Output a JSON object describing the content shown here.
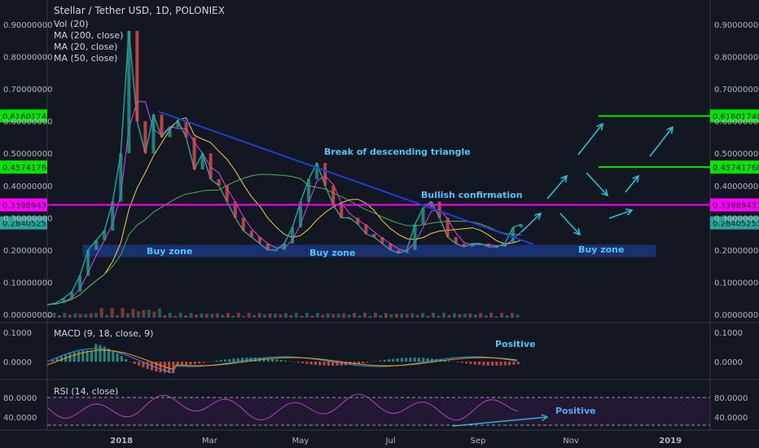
{
  "chart_data": {
    "type": "line",
    "title": "Stellar / Tether USD, 1D, POLONIEX",
    "legend": [
      "Vol (20)",
      "MA (200, close)",
      "MA (20, close)",
      "MA (50, close)"
    ],
    "price_axis": {
      "ticks": [
        "0.90000000",
        "0.80000000",
        "0.70000000",
        "0.60000000",
        "0.50000000",
        "0.40000000",
        "0.30000000",
        "0.20000000",
        "0.10000000",
        "0.00000000"
      ],
      "ylim": [
        0,
        0.9
      ]
    },
    "price_levels": [
      {
        "label": "0.61601748",
        "value": 0.61601748,
        "color": "#00e600"
      },
      {
        "label": "0.45741768",
        "value": 0.45741768,
        "color": "#00e600"
      },
      {
        "label": "0.33989437",
        "value": 0.33989437,
        "color": "#ff00ff"
      },
      {
        "label": "0.28405253",
        "value": 0.28405253,
        "color": "#26a69a"
      }
    ],
    "x_axis": {
      "ticks": [
        "2018",
        "Mar",
        "May",
        "Jul",
        "Sep",
        "Nov",
        "2019"
      ]
    },
    "annotations": {
      "buy_zone_1": "Buy zone",
      "buy_zone_2": "Buy zone",
      "buy_zone_3": "Buy zone",
      "triangle": "Break of descending triangle",
      "bullish": "Bullish confirmation",
      "macd_positive": "Positive",
      "rsi_positive": "Positive"
    },
    "macd": {
      "label": "MACD (9, 18, close, 9)",
      "ticks": [
        "0.1000",
        "0.0000"
      ]
    },
    "rsi": {
      "label": "RSI (14, close)",
      "ticks": [
        "80.0000",
        "40.0000"
      ]
    },
    "close_series": [
      0.03,
      0.035,
      0.05,
      0.07,
      0.12,
      0.2,
      0.23,
      0.26,
      0.35,
      0.5,
      0.88,
      0.6,
      0.5,
      0.62,
      0.55,
      0.58,
      0.6,
      0.55,
      0.45,
      0.5,
      0.42,
      0.4,
      0.35,
      0.3,
      0.26,
      0.24,
      0.22,
      0.2,
      0.2,
      0.22,
      0.27,
      0.35,
      0.42,
      0.47,
      0.4,
      0.34,
      0.3,
      0.3,
      0.28,
      0.25,
      0.24,
      0.22,
      0.2,
      0.19,
      0.2,
      0.28,
      0.33,
      0.35,
      0.3,
      0.24,
      0.22,
      0.21,
      0.22,
      0.22,
      0.21,
      0.21,
      0.22,
      0.27,
      0.28
    ]
  }
}
